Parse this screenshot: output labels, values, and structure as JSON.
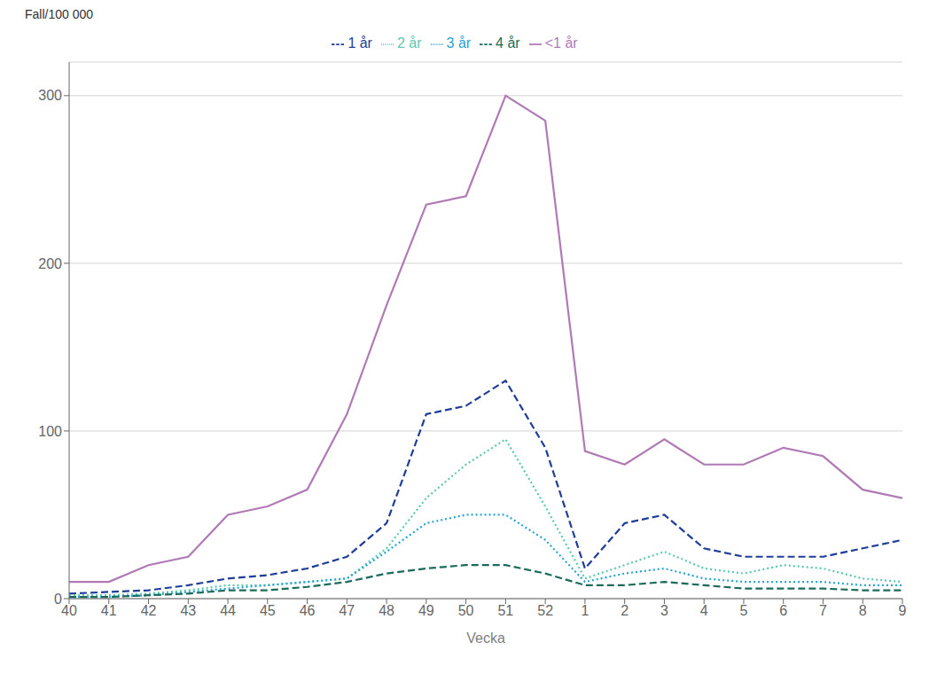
{
  "chart_data": {
    "type": "line",
    "x_label": "Vecka",
    "y_label": "Fall/100 000",
    "categories": [
      "40",
      "41",
      "42",
      "43",
      "44",
      "45",
      "46",
      "47",
      "48",
      "49",
      "50",
      "51",
      "52",
      "1",
      "2",
      "3",
      "4",
      "5",
      "6",
      "7",
      "8",
      "9"
    ],
    "series": [
      {
        "name": "<1 år",
        "color": "#b07ab5",
        "line_style": "solid",
        "values": [
          10,
          10,
          20,
          25,
          50,
          55,
          65,
          110,
          175,
          235,
          240,
          300,
          285,
          88,
          80,
          95,
          80,
          80,
          90,
          85,
          65,
          60
        ]
      },
      {
        "name": "1 år",
        "color": "#1f3d99",
        "line_style": "dashed",
        "values": [
          3,
          4,
          5,
          8,
          12,
          14,
          18,
          25,
          45,
          110,
          115,
          130,
          90,
          18,
          45,
          50,
          30,
          25,
          25,
          25,
          30,
          35
        ]
      },
      {
        "name": "2 år",
        "color": "#5bc8b0",
        "line_style": "dotted",
        "values": [
          2,
          2,
          3,
          5,
          8,
          8,
          10,
          12,
          30,
          60,
          80,
          95,
          55,
          12,
          20,
          28,
          18,
          15,
          20,
          18,
          12,
          10
        ]
      },
      {
        "name": "3 år",
        "color": "#29a3d4",
        "line_style": "dotted",
        "values": [
          1,
          1,
          2,
          4,
          6,
          8,
          10,
          12,
          28,
          45,
          50,
          50,
          35,
          10,
          15,
          18,
          12,
          10,
          10,
          10,
          8,
          8
        ]
      },
      {
        "name": "4 år",
        "color": "#1a6b5a",
        "line_style": "dashed",
        "values": [
          1,
          1,
          2,
          3,
          5,
          5,
          7,
          10,
          15,
          18,
          20,
          20,
          15,
          8,
          8,
          10,
          8,
          6,
          6,
          6,
          5,
          5
        ]
      }
    ],
    "ylim": [
      0,
      320
    ],
    "yticks": [
      0,
      100,
      200,
      300
    ],
    "grid": true,
    "legend": "top"
  }
}
